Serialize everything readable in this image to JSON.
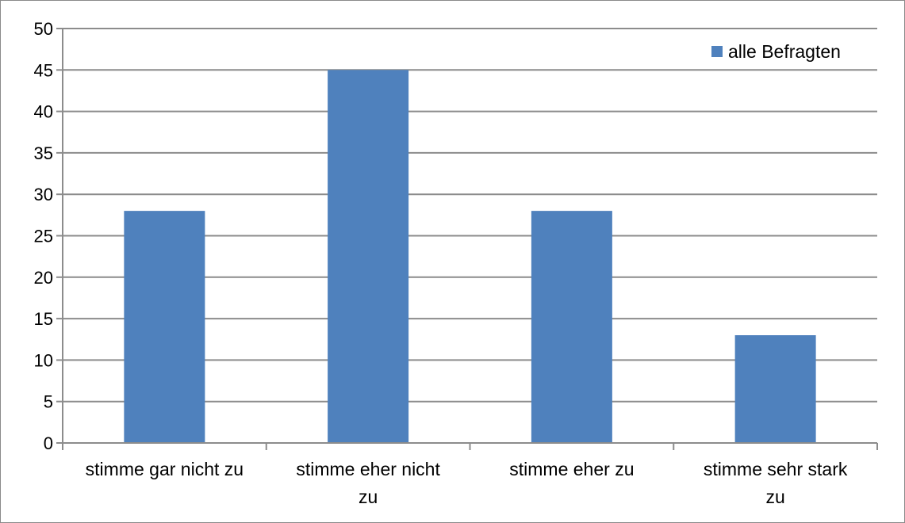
{
  "chart_data": {
    "type": "bar",
    "categories": [
      [
        "stimme gar nicht zu"
      ],
      [
        "stimme eher nicht",
        "zu"
      ],
      [
        "stimme eher zu"
      ],
      [
        "stimme sehr stark",
        "zu"
      ]
    ],
    "series": [
      {
        "name": "alle Befragten",
        "values": [
          28,
          45,
          28,
          13
        ],
        "color": "#4f81bd"
      }
    ],
    "ylim": [
      0,
      50
    ],
    "yticks": [
      0,
      5,
      10,
      15,
      20,
      25,
      30,
      35,
      40,
      45,
      50
    ],
    "grid": true,
    "legend_position": "top-right",
    "title": "",
    "xlabel": "",
    "ylabel": ""
  }
}
